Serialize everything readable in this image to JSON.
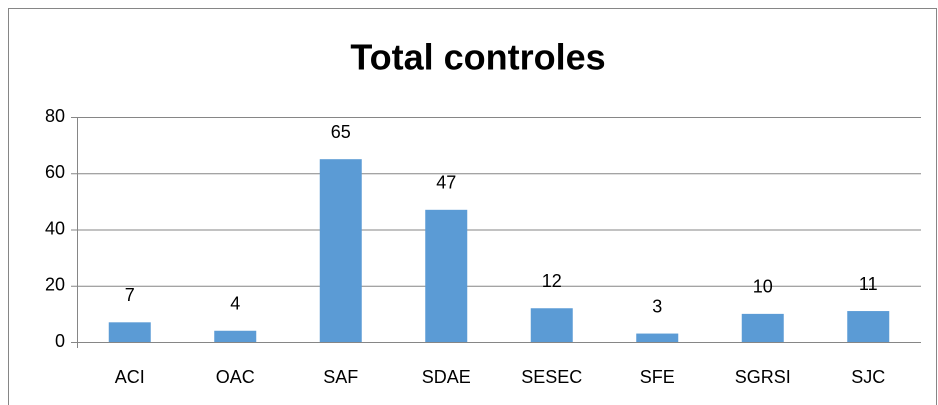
{
  "chart_data": {
    "type": "bar",
    "title": "Total controles",
    "categories": [
      "ACI",
      "OAC",
      "SAF",
      "SDAE",
      "SESEC",
      "SFE",
      "SGRSI",
      "SJC"
    ],
    "values": [
      7,
      4,
      65,
      47,
      12,
      3,
      10,
      11
    ],
    "color": "#5b9bd5",
    "ylim": [
      0,
      80
    ],
    "yticks": [
      0,
      20,
      40,
      60,
      80
    ],
    "grid": true
  }
}
